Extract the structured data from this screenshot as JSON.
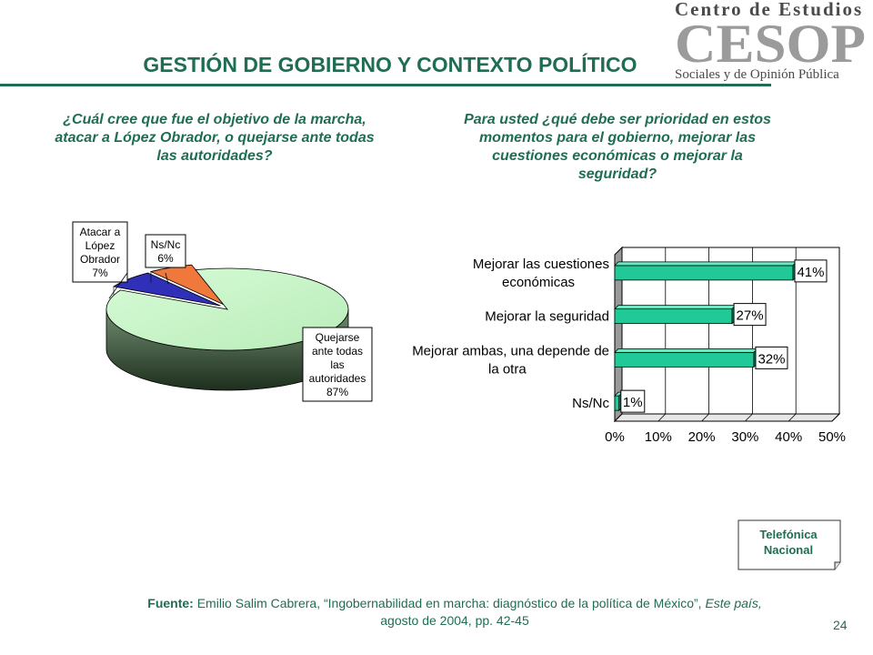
{
  "header": {
    "title": "GESTIÓN DE GOBIERNO Y CONTEXTO POLÍTICO",
    "logo_top": "Centro de Estudios",
    "logo_mark": "CESOP",
    "logo_bottom": "Sociales y de Opinión Pública"
  },
  "questions": {
    "left": "¿Cuál cree que fue el objetivo de la marcha, atacar a López Obrador, o quejarse ante todas las autoridades?",
    "right": "Para usted ¿qué debe ser prioridad en estos momentos para el gobierno, mejorar las cuestiones económicas o mejorar la seguridad?"
  },
  "chart_data": [
    {
      "type": "pie",
      "categories": [
        "Atacar a López Obrador",
        "Ns/Nc",
        "Quejarse ante todas las autoridades"
      ],
      "values": [
        7,
        6,
        87
      ],
      "labels": [
        [
          "Atacar a",
          "López",
          "Obrador",
          "7%"
        ],
        [
          "Ns/Nc",
          "6%"
        ],
        [
          "Quejarse",
          "ante todas",
          "las",
          "autoridades",
          "87%"
        ]
      ],
      "colors": [
        "#2f2fb8",
        "#f0783c",
        "#c6f5c6"
      ]
    },
    {
      "type": "bar",
      "orientation": "horizontal",
      "categories": [
        [
          "Mejorar las cuestiones",
          "económicas"
        ],
        [
          "Mejorar la seguridad"
        ],
        [
          "Mejorar ambas, una depende de",
          "la otra"
        ],
        [
          "Ns/Nc"
        ]
      ],
      "values": [
        41,
        27,
        32,
        1
      ],
      "data_labels": [
        "41%",
        "27%",
        "32%",
        "1%"
      ],
      "xlim": [
        0,
        50
      ],
      "ticks": [
        "0%",
        "10%",
        "20%",
        "30%",
        "40%",
        "50%"
      ],
      "grid": true,
      "colors": [
        "#20c997"
      ]
    }
  ],
  "badge": {
    "line1": "Telefónica",
    "line2": "Nacional"
  },
  "source": {
    "label": "Fuente:",
    "author": "Emilio Salim Cabrera,",
    "article": "“Ingobernabilidad en marcha: diagnóstico de la política de México”,",
    "magazine": "Este país,",
    "date": "agosto de 2004, pp.  42-45"
  },
  "page_number": "24"
}
